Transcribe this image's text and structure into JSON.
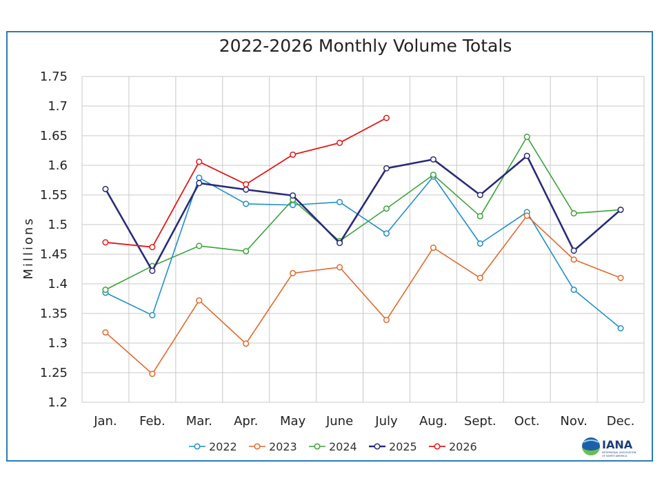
{
  "chart_data": {
    "type": "line",
    "title": "2022-2026 Monthly Volume Totals",
    "ylabel": "Millions",
    "xlabel": "",
    "categories": [
      "Jan.",
      "Feb.",
      "Mar.",
      "Apr.",
      "May",
      "June",
      "July",
      "Aug.",
      "Sept.",
      "Oct.",
      "Nov.",
      "Dec."
    ],
    "ylim": [
      1.2,
      1.75
    ],
    "yticks": [
      "1.2",
      "1.25",
      "1.3",
      "1.35",
      "1.4",
      "1.45",
      "1.5",
      "1.55",
      "1.6",
      "1.65",
      "1.7",
      "1.75"
    ],
    "grid": true,
    "legend_position": "bottom",
    "series": [
      {
        "name": "2022",
        "color": "#1f8fc8",
        "width": 1.6,
        "values": [
          1.385,
          1.347,
          1.579,
          1.535,
          1.533,
          1.538,
          1.485,
          1.581,
          1.468,
          1.521,
          1.39,
          1.325
        ]
      },
      {
        "name": "2023",
        "color": "#e06a2c",
        "width": 1.6,
        "values": [
          1.318,
          1.248,
          1.372,
          1.299,
          1.418,
          1.428,
          1.339,
          1.461,
          1.41,
          1.515,
          1.441,
          1.41
        ]
      },
      {
        "name": "2024",
        "color": "#3aa23a",
        "width": 1.6,
        "values": [
          1.39,
          1.43,
          1.464,
          1.455,
          1.542,
          1.472,
          1.527,
          1.584,
          1.514,
          1.648,
          1.519,
          1.525
        ]
      },
      {
        "name": "2025",
        "color": "#2a2a78",
        "width": 2.6,
        "values": [
          1.56,
          1.422,
          1.57,
          1.559,
          1.549,
          1.469,
          1.595,
          1.61,
          1.55,
          1.616,
          1.456,
          1.525
        ]
      },
      {
        "name": "2026",
        "color": "#e01818",
        "width": 1.8,
        "values": [
          1.47,
          1.462,
          1.606,
          1.568,
          1.618,
          1.638,
          1.68,
          null,
          null,
          null,
          null,
          null
        ]
      }
    ]
  },
  "logo": {
    "name": "IANA",
    "subtitle_line1": "INTERMODAL ASSOCIATION",
    "subtitle_line2": "OF NORTH AMERICA"
  }
}
